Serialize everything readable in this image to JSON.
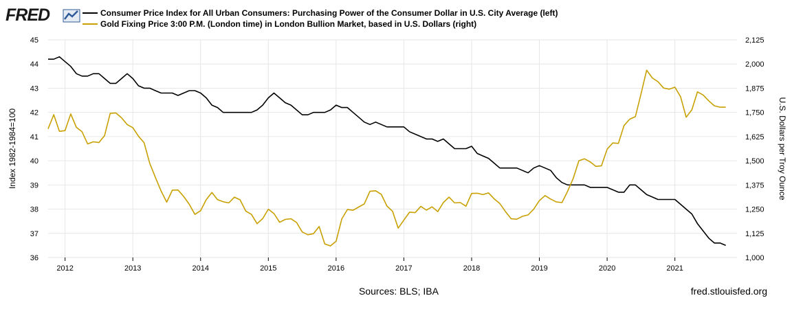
{
  "header": {
    "logo_text": "FRED",
    "legend": [
      {
        "label": "Consumer Price Index for All Urban Consumers: Purchasing Power of the Consumer Dollar in U.S. City Average (left)",
        "color": "#000000"
      },
      {
        "label": "Gold Fixing Price 3:00 P.M. (London time) in London Bullion Market, based in U.S. Dollars (right)",
        "color": "#c8a000"
      }
    ]
  },
  "footer": {
    "sources": "Sources: BLS; IBA",
    "credit": "fred.stlouisfed.org"
  },
  "chart_data": {
    "type": "line",
    "grid": true,
    "x_ticks": [
      "2012",
      "2013",
      "2014",
      "2015",
      "2016",
      "2017",
      "2018",
      "2019",
      "2020",
      "2021"
    ],
    "x_range": [
      "2011-10",
      "2021-12"
    ],
    "y_left": {
      "label": "Index 1982-1984=100",
      "range": [
        36,
        45
      ],
      "ticks": [
        "36",
        "37",
        "38",
        "39",
        "40",
        "41",
        "42",
        "43",
        "44",
        "45"
      ]
    },
    "y_right": {
      "label": "U.S. Dollars per Troy Ounce",
      "range": [
        1000,
        2125
      ],
      "ticks": [
        "1,000",
        "1,125",
        "1,250",
        "1,375",
        "1,500",
        "1,625",
        "1,750",
        "1,875",
        "2,000",
        "2,125"
      ]
    },
    "series": [
      {
        "name": "Consumer Price Index for All Urban Consumers: Purchasing Power of the Consumer Dollar in U.S. City Average",
        "axis": "left",
        "color": "#000000",
        "start": "2011-10",
        "values": [
          44.2,
          44.2,
          44.3,
          44.1,
          43.9,
          43.6,
          43.5,
          43.5,
          43.6,
          43.6,
          43.4,
          43.2,
          43.2,
          43.4,
          43.6,
          43.4,
          43.1,
          43.0,
          43.0,
          42.9,
          42.8,
          42.8,
          42.8,
          42.7,
          42.8,
          42.9,
          42.9,
          42.8,
          42.6,
          42.3,
          42.2,
          42.0,
          42.0,
          42.0,
          42.0,
          42.0,
          42.0,
          42.1,
          42.3,
          42.6,
          42.8,
          42.6,
          42.4,
          42.3,
          42.1,
          41.9,
          41.9,
          42.0,
          42.0,
          42.0,
          42.1,
          42.3,
          42.2,
          42.2,
          42.0,
          41.8,
          41.6,
          41.5,
          41.6,
          41.5,
          41.4,
          41.4,
          41.4,
          41.4,
          41.2,
          41.1,
          41.0,
          40.9,
          40.9,
          40.8,
          40.9,
          40.7,
          40.5,
          40.5,
          40.5,
          40.6,
          40.3,
          40.2,
          40.1,
          39.9,
          39.7,
          39.7,
          39.7,
          39.7,
          39.6,
          39.5,
          39.7,
          39.8,
          39.7,
          39.6,
          39.3,
          39.1,
          39.0,
          39.0,
          39.0,
          39.0,
          38.9,
          38.9,
          38.9,
          38.9,
          38.8,
          38.7,
          38.7,
          39.0,
          39.0,
          38.8,
          38.6,
          38.5,
          38.4,
          38.4,
          38.4,
          38.4,
          38.2,
          38.0,
          37.8,
          37.4,
          37.1,
          36.8,
          36.6,
          36.6,
          36.5
        ]
      },
      {
        "name": "Gold Fixing Price 3:00 P.M. (London time) in London Bullion Market, based in U.S. Dollars",
        "axis": "right",
        "color": "#c8a000",
        "start": "2011-10",
        "values": [
          1665,
          1738,
          1652,
          1656,
          1742,
          1673,
          1650,
          1587,
          1598,
          1594,
          1630,
          1745,
          1747,
          1722,
          1687,
          1671,
          1627,
          1593,
          1487,
          1414,
          1344,
          1286,
          1348,
          1349,
          1316,
          1275,
          1223,
          1242,
          1299,
          1336,
          1299,
          1288,
          1282,
          1312,
          1298,
          1240,
          1223,
          1175,
          1201,
          1250,
          1227,
          1182,
          1197,
          1200,
          1181,
          1132,
          1118,
          1123,
          1160,
          1070,
          1060,
          1084,
          1199,
          1248,
          1244,
          1261,
          1277,
          1342,
          1345,
          1326,
          1266,
          1239,
          1152,
          1193,
          1234,
          1232,
          1264,
          1245,
          1262,
          1237,
          1284,
          1312,
          1282,
          1284,
          1265,
          1331,
          1332,
          1325,
          1334,
          1303,
          1279,
          1237,
          1200,
          1198,
          1213,
          1220,
          1250,
          1294,
          1320,
          1302,
          1287,
          1284,
          1342,
          1409,
          1500,
          1510,
          1494,
          1471,
          1474,
          1560,
          1592,
          1590,
          1682,
          1715,
          1728,
          1846,
          1968,
          1928,
          1909,
          1876,
          1870,
          1880,
          1831,
          1725,
          1763,
          1856,
          1840,
          1810,
          1784,
          1777,
          1777
        ]
      }
    ]
  }
}
